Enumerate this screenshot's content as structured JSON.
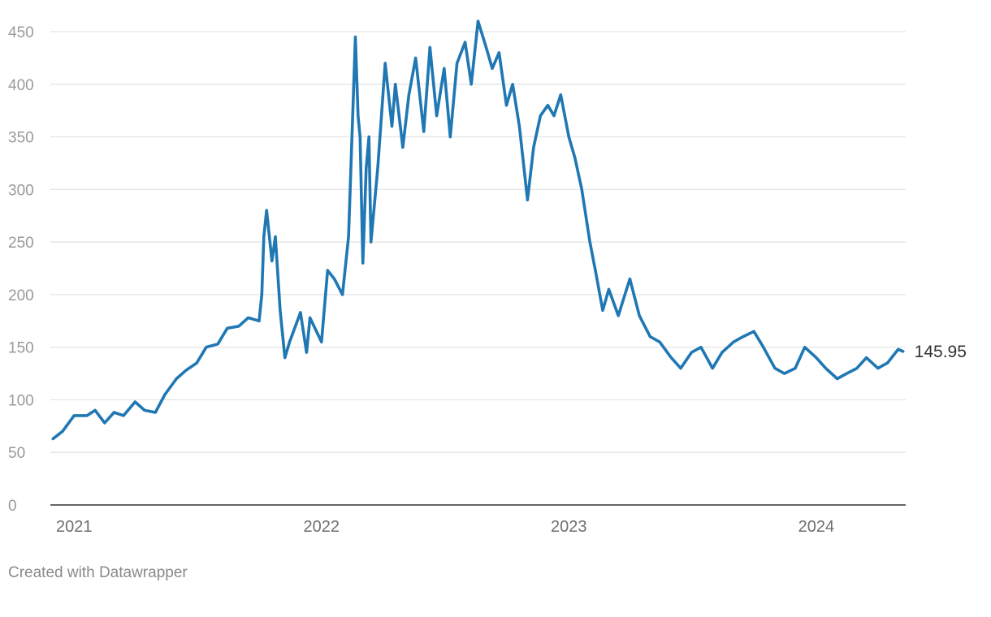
{
  "chart_data": {
    "type": "line",
    "title": "",
    "xlabel": "",
    "ylabel": "",
    "ylim": [
      0,
      460
    ],
    "yticks": [
      0,
      50,
      100,
      150,
      200,
      250,
      300,
      350,
      400,
      450
    ],
    "ytick_labels": [
      "0",
      "50",
      "100",
      "150",
      "200",
      "250",
      "300",
      "350",
      "400",
      "450"
    ],
    "xlim": [
      "2020-11-27",
      "2024-05-12"
    ],
    "xticks": [
      "2021-01-01",
      "2022-01-01",
      "2023-01-01",
      "2024-01-01"
    ],
    "xtick_labels": [
      "2021",
      "2022",
      "2023",
      "2024"
    ],
    "grid": true,
    "line_color": "#1f77b4",
    "end_label": "145.95",
    "series": [
      {
        "x": [
          "2020-12-01",
          "2020-12-15",
          "2021-01-01",
          "2021-01-20",
          "2021-02-01",
          "2021-02-15",
          "2021-03-01",
          "2021-03-15",
          "2021-04-01",
          "2021-04-15",
          "2021-05-01",
          "2021-05-15",
          "2021-06-01",
          "2021-06-15",
          "2021-07-01",
          "2021-07-15",
          "2021-08-01",
          "2021-08-15",
          "2021-09-01",
          "2021-09-15",
          "2021-10-01",
          "2021-10-05",
          "2021-10-08",
          "2021-10-12",
          "2021-10-20",
          "2021-10-25",
          "2021-11-01",
          "2021-11-08",
          "2021-11-15",
          "2021-12-01",
          "2021-12-10",
          "2021-12-15",
          "2022-01-01",
          "2022-01-10",
          "2022-01-20",
          "2022-02-01",
          "2022-02-10",
          "2022-02-20",
          "2022-02-24",
          "2022-02-27",
          "2022-03-03",
          "2022-03-08",
          "2022-03-12",
          "2022-03-15",
          "2022-03-25",
          "2022-04-05",
          "2022-04-15",
          "2022-04-20",
          "2022-05-01",
          "2022-05-10",
          "2022-05-20",
          "2022-06-01",
          "2022-06-10",
          "2022-06-20",
          "2022-07-01",
          "2022-07-10",
          "2022-07-20",
          "2022-08-01",
          "2022-08-10",
          "2022-08-20",
          "2022-09-01",
          "2022-09-10",
          "2022-09-20",
          "2022-10-01",
          "2022-10-10",
          "2022-10-20",
          "2022-11-01",
          "2022-11-10",
          "2022-11-20",
          "2022-12-01",
          "2022-12-10",
          "2022-12-20",
          "2023-01-01",
          "2023-01-10",
          "2023-01-20",
          "2023-02-01",
          "2023-02-10",
          "2023-02-20",
          "2023-03-01",
          "2023-03-15",
          "2023-04-01",
          "2023-04-15",
          "2023-05-01",
          "2023-05-15",
          "2023-06-01",
          "2023-06-15",
          "2023-07-01",
          "2023-07-15",
          "2023-08-01",
          "2023-08-15",
          "2023-09-01",
          "2023-09-15",
          "2023-10-01",
          "2023-10-15",
          "2023-11-01",
          "2023-11-15",
          "2023-12-01",
          "2023-12-15",
          "2024-01-01",
          "2024-01-15",
          "2024-02-01",
          "2024-02-15",
          "2024-03-01",
          "2024-03-15",
          "2024-04-01",
          "2024-04-15",
          "2024-05-01",
          "2024-05-08"
        ],
        "values": [
          63,
          70,
          85,
          85,
          90,
          78,
          88,
          85,
          98,
          90,
          88,
          105,
          120,
          128,
          135,
          150,
          153,
          168,
          170,
          178,
          175,
          200,
          255,
          280,
          232,
          255,
          185,
          140,
          155,
          183,
          145,
          178,
          155,
          223,
          215,
          200,
          255,
          445,
          370,
          350,
          230,
          320,
          350,
          250,
          320,
          420,
          360,
          400,
          340,
          390,
          425,
          355,
          435,
          370,
          415,
          350,
          420,
          440,
          400,
          460,
          435,
          415,
          430,
          380,
          400,
          360,
          290,
          340,
          370,
          380,
          370,
          390,
          350,
          330,
          300,
          250,
          220,
          185,
          205,
          180,
          215,
          180,
          160,
          155,
          140,
          130,
          145,
          150,
          130,
          145,
          155,
          160,
          165,
          150,
          130,
          125,
          130,
          150,
          140,
          130,
          120,
          125,
          130,
          140,
          130,
          135,
          148,
          146
        ]
      }
    ],
    "footer": "Created with Datawrapper"
  }
}
